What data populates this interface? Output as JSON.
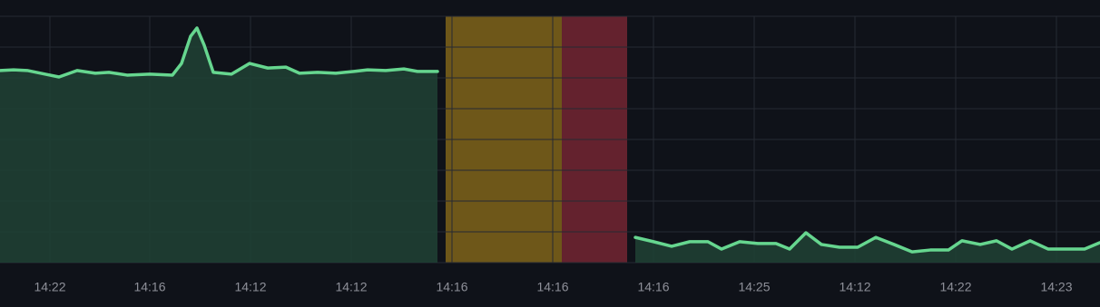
{
  "chart_data": {
    "type": "area",
    "xlim": [
      0,
      121.2
    ],
    "ylim": [
      0,
      8
    ],
    "yticks": [
      0,
      1,
      2,
      3,
      4,
      5,
      6,
      7,
      8
    ],
    "xticks": [
      {
        "value": 5.5,
        "label": "14:22"
      },
      {
        "value": 16.5,
        "label": "14:16"
      },
      {
        "value": 27.6,
        "label": "14:12"
      },
      {
        "value": 38.7,
        "label": "14:12"
      },
      {
        "value": 49.8,
        "label": "14:16"
      },
      {
        "value": 60.9,
        "label": "14:16"
      },
      {
        "value": 72,
        "label": "14:16"
      },
      {
        "value": 83.1,
        "label": "14:25"
      },
      {
        "value": 94.2,
        "label": "14:12"
      },
      {
        "value": 105.3,
        "label": "14:22"
      },
      {
        "value": 116.4,
        "label": "14:23"
      }
    ],
    "grid": true,
    "regions": [
      {
        "from": 49.1,
        "to": 61.9,
        "color": "#6e5719"
      },
      {
        "from": 61.9,
        "to": 69.1,
        "color": "#64222e"
      }
    ],
    "series": [
      {
        "color": "#66d68f",
        "fill": "#1f3f33",
        "x": [
          0,
          1.5,
          3,
          5,
          6.5,
          8.5,
          10.5,
          12,
          14,
          16.5,
          19,
          20,
          21,
          21.7,
          22.5,
          23.5,
          25.5,
          27.5,
          29.5,
          31.5,
          33,
          35,
          37,
          39,
          40.5,
          42.5,
          44.5,
          46,
          48.2,
          59,
          70,
          72,
          74,
          76,
          78,
          79.5,
          81.5,
          83.5,
          85.5,
          87,
          88.8,
          90.5,
          92.5,
          94.5,
          96.5,
          98.5,
          100.5,
          102.5,
          104.5,
          106,
          108,
          109.8,
          111.5,
          113.5,
          115.5,
          117.5,
          119.5,
          121.2
        ],
        "values": [
          6.24,
          6.26,
          6.24,
          6.12,
          6.03,
          6.24,
          6.15,
          6.18,
          6.09,
          6.12,
          6.09,
          6.47,
          7.35,
          7.62,
          7.06,
          6.18,
          6.12,
          6.47,
          6.32,
          6.35,
          6.15,
          6.18,
          6.15,
          6.21,
          6.26,
          6.24,
          6.29,
          6.21,
          6.21,
          null,
          0.82,
          0.68,
          0.53,
          0.68,
          0.68,
          0.44,
          0.68,
          0.62,
          0.62,
          0.44,
          0.97,
          0.59,
          0.5,
          0.5,
          0.82,
          0.59,
          0.35,
          0.41,
          0.41,
          0.71,
          0.59,
          0.71,
          0.44,
          0.71,
          0.44,
          0.44,
          0.44,
          0.65
        ]
      }
    ]
  }
}
